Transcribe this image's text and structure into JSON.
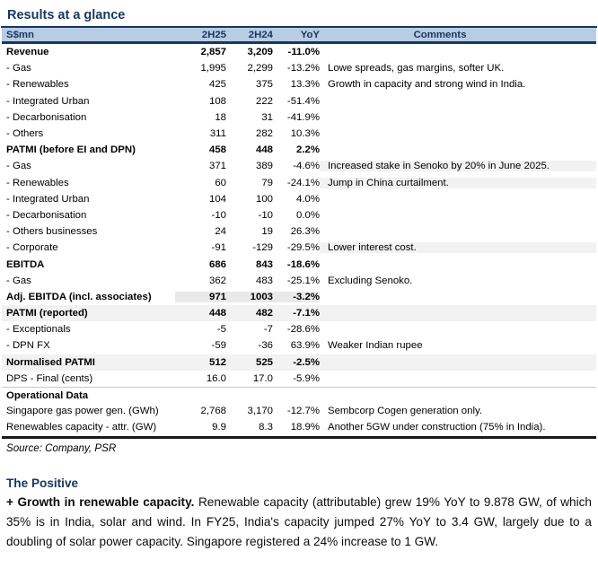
{
  "page": {
    "title": "Results at a glance",
    "source_note": "Source: Company, PSR"
  },
  "colors": {
    "accent_navy": "#17375E",
    "header_fill": "#B8CCE4",
    "row_highlight": "#F2F2F2",
    "numbers_highlight": "#E9E9E9",
    "table_bottom_border": "#1A1A1A"
  },
  "table": {
    "columns": [
      "S$mn",
      "2H25",
      "2H24",
      "YoY",
      "Comments"
    ],
    "rows": [
      {
        "label": "Revenue",
        "v1": "2,857",
        "v2": "3,209",
        "yoy": "-11.0%",
        "comment": "",
        "bold": true,
        "shade": "none",
        "cshade": false
      },
      {
        "label": "- Gas",
        "v1": "1,995",
        "v2": "2,299",
        "yoy": "-13.2%",
        "comment": "Lowe spreads, gas margins, softer UK.",
        "bold": false,
        "shade": "none",
        "cshade": false
      },
      {
        "label": "- Renewables",
        "v1": "425",
        "v2": "375",
        "yoy": "13.3%",
        "comment": "Growth in capacity and strong wind in India.",
        "bold": false,
        "shade": "none",
        "cshade": false
      },
      {
        "label": "- Integrated Urban",
        "v1": "108",
        "v2": "222",
        "yoy": "-51.4%",
        "comment": "",
        "bold": false,
        "shade": "none",
        "cshade": false
      },
      {
        "label": "- Decarbonisation",
        "v1": "18",
        "v2": "31",
        "yoy": "-41.9%",
        "comment": "",
        "bold": false,
        "shade": "none",
        "cshade": false
      },
      {
        "label": "- Others",
        "v1": "311",
        "v2": "282",
        "yoy": "10.3%",
        "comment": "",
        "bold": false,
        "shade": "none",
        "cshade": false
      },
      {
        "label": "PATMI (before EI and DPN)",
        "v1": "458",
        "v2": "448",
        "yoy": "2.2%",
        "comment": "",
        "bold": true,
        "shade": "none",
        "cshade": false
      },
      {
        "label": "- Gas",
        "v1": "371",
        "v2": "389",
        "yoy": "-4.6%",
        "comment": "Increased stake in Senoko by 20% in June 2025.",
        "bold": false,
        "shade": "none",
        "cshade": true
      },
      {
        "label": "- Renewables",
        "v1": "60",
        "v2": "79",
        "yoy": "-24.1%",
        "comment": "Jump in China curtailment.",
        "bold": false,
        "shade": "none",
        "cshade": true
      },
      {
        "label": "- Integrated Urban",
        "v1": "104",
        "v2": "100",
        "yoy": "4.0%",
        "comment": "",
        "bold": false,
        "shade": "none",
        "cshade": true
      },
      {
        "label": "- Decarbonisation",
        "v1": "-10",
        "v2": "-10",
        "yoy": "0.0%",
        "comment": "",
        "bold": false,
        "shade": "none",
        "cshade": true
      },
      {
        "label": "- Others businesses",
        "v1": "24",
        "v2": "19",
        "yoy": "26.3%",
        "comment": "",
        "bold": false,
        "shade": "none",
        "cshade": true
      },
      {
        "label": "- Corporate",
        "v1": "-91",
        "v2": "-129",
        "yoy": "-29.5%",
        "comment": "Lower interest cost.",
        "bold": false,
        "shade": "none",
        "cshade": true
      },
      {
        "label": "EBITDA",
        "v1": "686",
        "v2": "843",
        "yoy": "-18.6%",
        "comment": "",
        "bold": true,
        "shade": "none",
        "cshade": false
      },
      {
        "label": "- Gas",
        "v1": "362",
        "v2": "483",
        "yoy": "-25.1%",
        "comment": "Excluding Senoko.",
        "bold": false,
        "shade": "none",
        "cshade": false
      },
      {
        "label": "Adj. EBITDA (incl. associates)",
        "v1": "971",
        "v2": "1003",
        "yoy": "-3.2%",
        "comment": "",
        "bold": true,
        "shade": "numbers",
        "cshade": false
      },
      {
        "label": "PATMI (reported)",
        "v1": "448",
        "v2": "482",
        "yoy": "-7.1%",
        "comment": "",
        "bold": true,
        "shade": "full",
        "cshade": false
      },
      {
        "label": "- Exceptionals",
        "v1": "-5",
        "v2": "-7",
        "yoy": "-28.6%",
        "comment": "",
        "bold": false,
        "shade": "none",
        "cshade": false
      },
      {
        "label": "- DPN FX",
        "v1": "-59",
        "v2": "-36",
        "yoy": "63.9%",
        "comment": "Weaker Indian rupee",
        "bold": false,
        "shade": "none",
        "cshade": false
      },
      {
        "label": "Normalised PATMI",
        "v1": "512",
        "v2": "525",
        "yoy": "-2.5%",
        "comment": "",
        "bold": true,
        "shade": "full",
        "cshade": false
      },
      {
        "label": "DPS - Final (cents)",
        "v1": "16.0",
        "v2": "17.0",
        "yoy": "-5.9%",
        "comment": "",
        "bold": false,
        "shade": "none",
        "cshade": false
      },
      {
        "label": "Operational Data",
        "v1": "",
        "v2": "",
        "yoy": "",
        "comment": "",
        "bold": true,
        "shade": "none",
        "cshade": false,
        "topline": true
      },
      {
        "label": "Singapore gas power gen. (GWh)",
        "v1": "2,768",
        "v2": "3,170",
        "yoy": "-12.7%",
        "comment": "Sembcorp Cogen generation only.",
        "bold": false,
        "shade": "none",
        "cshade": false
      },
      {
        "label": "Renewables capacity - attr. (GW)",
        "v1": "9.9",
        "v2": "8.3",
        "yoy": "18.9%",
        "comment": "Another 5GW under construction (75% in India).",
        "bold": false,
        "shade": "none",
        "cshade": false
      }
    ]
  },
  "positive_section": {
    "heading": "The Positive",
    "lead": "+ Growth in renewable capacity.",
    "body": " Renewable capacity (attributable) grew 19% YoY to 9.878 GW, of which 35% is in India, solar and wind. In FY25, India's capacity jumped 27% YoY to 3.4 GW, largely due to a doubling of solar power capacity. Singapore registered a 24% increase to 1 GW."
  }
}
